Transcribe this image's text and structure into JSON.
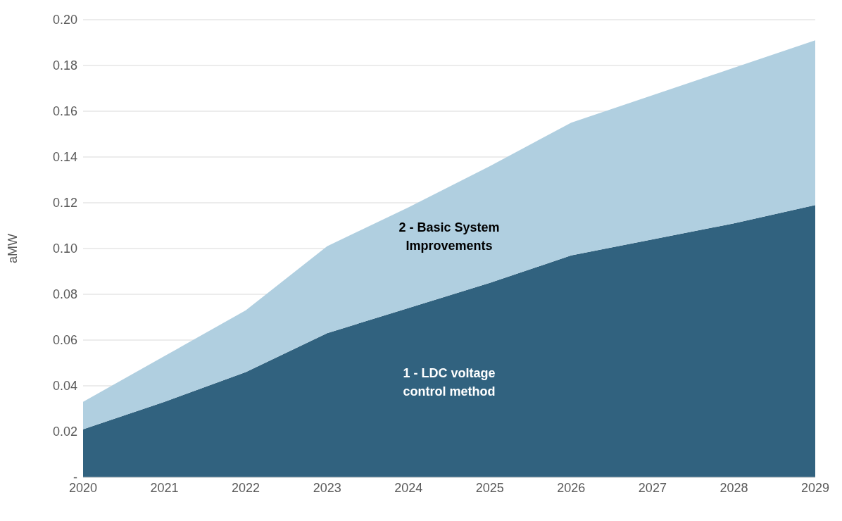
{
  "chart_data": {
    "type": "area",
    "ylabel": "aMW",
    "stacked": true,
    "categories": [
      "2020",
      "2021",
      "2022",
      "2023",
      "2024",
      "2025",
      "2026",
      "2027",
      "2028",
      "2029"
    ],
    "series": [
      {
        "name": "1 - LDC voltage control method",
        "color": "#31627f",
        "values": [
          0.021,
          0.033,
          0.046,
          0.063,
          0.074,
          0.085,
          0.097,
          0.104,
          0.111,
          0.119
        ]
      },
      {
        "name": "2 - Basic System Improvements",
        "color": "#b0cfe0",
        "values": [
          0.012,
          0.02,
          0.027,
          0.038,
          0.044,
          0.051,
          0.058,
          0.063,
          0.068,
          0.072
        ]
      }
    ],
    "ylim": [
      0,
      0.2
    ],
    "yticks": [
      {
        "value": 0,
        "label": "-"
      },
      0.02,
      0.04,
      0.06,
      0.08,
      {
        "value": 0.1,
        "label": "0.10"
      },
      0.12,
      0.14,
      0.16,
      0.18,
      {
        "value": 0.2,
        "label": "0.20"
      }
    ],
    "grid": "y",
    "legend": false
  }
}
